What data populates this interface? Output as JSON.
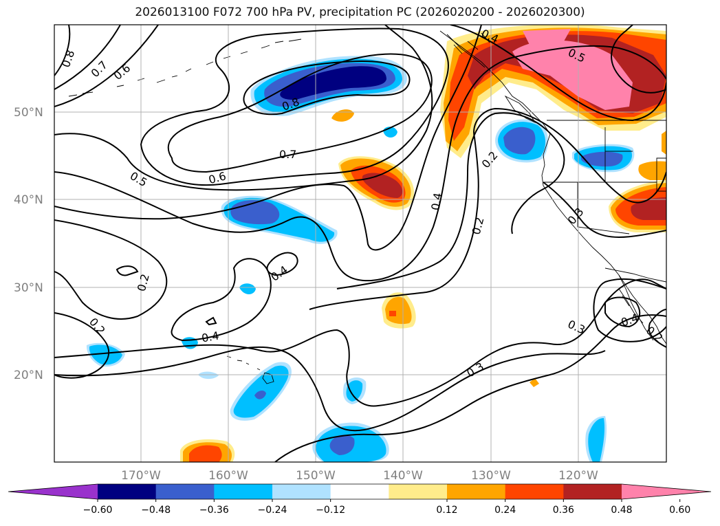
{
  "title": "2026013100 F072 700 hPa PV, precipitation PC (2026020200 - 2026020300)",
  "lat_labels": [
    "50°N",
    "40°N",
    "30°N",
    "20°N"
  ],
  "lon_labels": [
    "170°W",
    "160°W",
    "150°W",
    "140°W",
    "130°W",
    "120°W"
  ],
  "contour_labels": [
    "0.8",
    "0.7",
    "0.6",
    "0.8",
    "0.7",
    "0.6",
    "0.5",
    "0.4",
    "0.5",
    "0.2",
    "0.4",
    "0.2",
    "0.3",
    "0.4",
    "0.2",
    "0.2",
    "0.4",
    "0.3",
    "0.3",
    "0.4",
    "0.2"
  ],
  "colorbar": {
    "ticks": [
      "−0.60",
      "−0.48",
      "−0.36",
      "−0.24",
      "−0.12",
      "0.12",
      "0.24",
      "0.36",
      "0.48",
      "0.60"
    ],
    "colors": [
      "#9932cc",
      "#000080",
      "#3a5fcd",
      "#00bfff",
      "#b0e2ff",
      "#ffffff",
      "#ffec8b",
      "#ffa500",
      "#ff4500",
      "#b22222",
      "#ff82ab"
    ]
  },
  "colors": {
    "grid": "#b0b0b0",
    "contour": "#000000",
    "coast": "#000000"
  }
}
